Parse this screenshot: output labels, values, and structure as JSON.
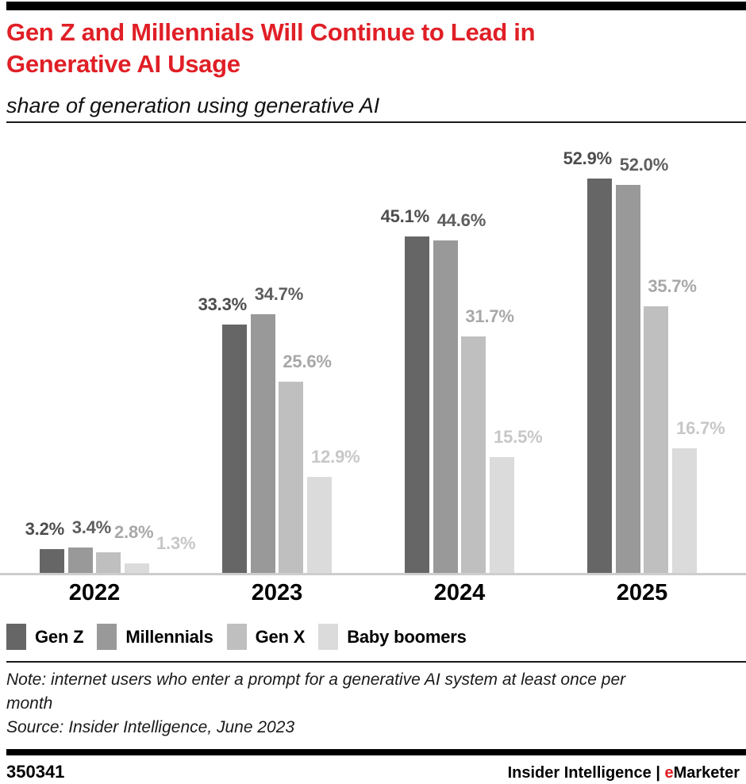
{
  "header": {
    "title_lines": [
      "Gen Z and Millennials Will Continue to Lead in",
      "Generative AI Usage"
    ],
    "subtitle": "share of generation using generative AI"
  },
  "chart_data": {
    "type": "bar",
    "title": "Gen Z and Millennials Will Continue to Lead in Generative AI Usage",
    "subtitle": "share of generation using generative AI",
    "categories": [
      "2022",
      "2023",
      "2024",
      "2025"
    ],
    "series": [
      {
        "name": "Gen Z",
        "color": "#666666",
        "label_color": "#4d4d4d",
        "values": [
          3.2,
          33.3,
          45.1,
          52.9
        ]
      },
      {
        "name": "Millennials",
        "color": "#999999",
        "label_color": "#5e5e5e",
        "values": [
          3.4,
          34.7,
          44.6,
          52.0
        ]
      },
      {
        "name": "Gen X",
        "color": "#bfbfbf",
        "label_color": "#a8a8a8",
        "values": [
          2.8,
          25.6,
          31.7,
          35.7
        ]
      },
      {
        "name": "Baby boomers",
        "color": "#dbdbdb",
        "label_color": "#c7c7c7",
        "values": [
          1.3,
          12.9,
          15.5,
          16.7
        ]
      }
    ],
    "value_suffix": "%",
    "value_decimals": 1,
    "ylim": [
      0,
      56
    ],
    "grid": false,
    "data_labels": true,
    "legend_position": "bottom"
  },
  "colors": {
    "accent_red": "#e01f26",
    "rule_black": "#1a1a1a",
    "baseline_gray": "#cdcdcd"
  },
  "note": {
    "note_lines": [
      "Note: internet users who enter a prompt for a generative AI system at least once per",
      "month"
    ],
    "source_text": "Source: Insider Intelligence, June 2023"
  },
  "footer": {
    "chart_id": "350341",
    "brand_left": "Insider Intelligence",
    "separator": "|",
    "brand_e": "e",
    "brand_rest": "Marketer"
  }
}
